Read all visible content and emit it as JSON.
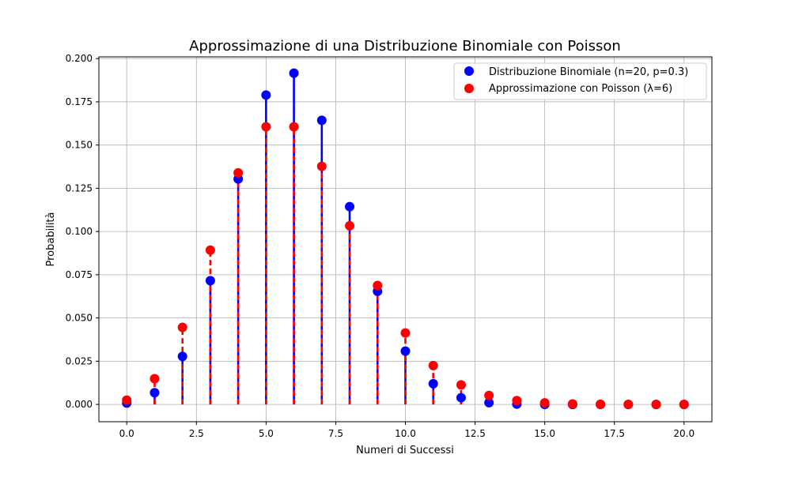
{
  "chart_data": {
    "type": "stem",
    "title": "Approssimazione di una Distribuzione Binomiale con Poisson",
    "xlabel": "Numeri di Successi",
    "ylabel": "Probabilità",
    "xlim": [
      -1,
      21
    ],
    "ylim": [
      -0.01,
      0.201
    ],
    "xticks": [
      0,
      2.5,
      5,
      7.5,
      10,
      12.5,
      15,
      17.5,
      20
    ],
    "xtick_labels": [
      "0.0",
      "2.5",
      "5.0",
      "7.5",
      "10.0",
      "12.5",
      "15.0",
      "17.5",
      "20.0"
    ],
    "yticks": [
      0,
      0.025,
      0.05,
      0.075,
      0.1,
      0.125,
      0.15,
      0.175,
      0.2
    ],
    "ytick_labels": [
      "0.000",
      "0.025",
      "0.050",
      "0.075",
      "0.100",
      "0.125",
      "0.150",
      "0.175",
      "0.200"
    ],
    "grid": true,
    "legend_position": "top-right",
    "x": [
      0,
      1,
      2,
      3,
      4,
      5,
      6,
      7,
      8,
      9,
      10,
      11,
      12,
      13,
      14,
      15,
      16,
      17,
      18,
      19,
      20
    ],
    "series": [
      {
        "name": "Distribuzione Binomiale (n=20, p=0.3)",
        "color": "#0000ff",
        "line_style": "solid",
        "values": [
          0.0008,
          0.0068,
          0.0278,
          0.0716,
          0.1304,
          0.1789,
          0.1916,
          0.1643,
          0.1144,
          0.0654,
          0.0308,
          0.012,
          0.0039,
          0.001,
          0.0002,
          0.0,
          0.0,
          0.0,
          0.0,
          0.0,
          0.0
        ]
      },
      {
        "name": "Approssimazione con Poisson (λ=6)",
        "color": "#ff0000",
        "line_style": "dashed",
        "values": [
          0.0025,
          0.0149,
          0.0446,
          0.0892,
          0.1339,
          0.1606,
          0.1606,
          0.1377,
          0.1033,
          0.0688,
          0.0413,
          0.0225,
          0.0113,
          0.0052,
          0.0022,
          0.0009,
          0.0003,
          0.0001,
          0.0,
          0.0,
          0.0
        ]
      }
    ]
  }
}
